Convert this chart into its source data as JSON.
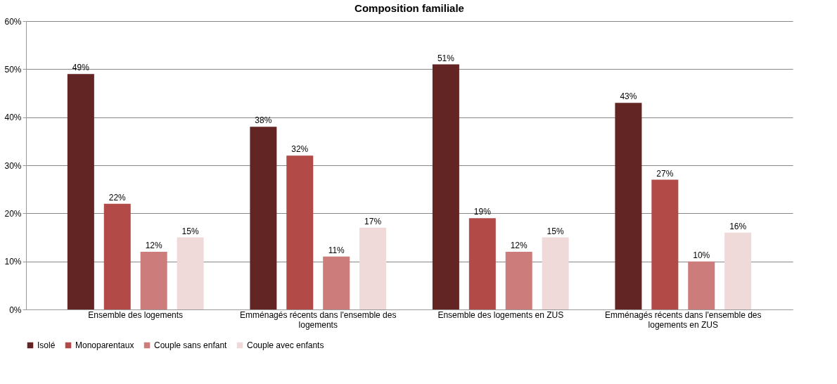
{
  "chart_data": {
    "type": "bar",
    "title": "Composition familiale",
    "categories": [
      "Ensemble des logements",
      "Emménagés récents dans l'ensemble des logements",
      "Ensemble des logements en ZUS",
      "Emménagés récents dans l'ensemble des logements en ZUS"
    ],
    "series": [
      {
        "name": "Isolé",
        "color": "#632523",
        "values": [
          49,
          38,
          51,
          43
        ],
        "value_labels": [
          "49%",
          "38%",
          "51%",
          "43%"
        ]
      },
      {
        "name": "Monoparentaux",
        "color": "#b24a47",
        "values": [
          22,
          32,
          19,
          27
        ],
        "value_labels": [
          "22%",
          "32%",
          "19%",
          "27%"
        ]
      },
      {
        "name": "Couple sans enfant",
        "color": "#cc7c7a",
        "values": [
          12,
          11,
          12,
          10
        ],
        "value_labels": [
          "12%",
          "11%",
          "12%",
          "10%"
        ]
      },
      {
        "name": "Couple avec enfants",
        "color": "#f0d9d9",
        "values": [
          15,
          17,
          15,
          16
        ],
        "value_labels": [
          "15%",
          "17%",
          "15%",
          "16%"
        ]
      }
    ],
    "ylim": [
      0,
      60
    ],
    "yticks": [
      {
        "value": 0,
        "label": "0%"
      },
      {
        "value": 10,
        "label": "10%"
      },
      {
        "value": 20,
        "label": "20%"
      },
      {
        "value": 30,
        "label": "30%"
      },
      {
        "value": 40,
        "label": "40%"
      },
      {
        "value": 50,
        "label": "50%"
      },
      {
        "value": 60,
        "label": "60%"
      }
    ],
    "grid": "y",
    "legend": "bottom"
  }
}
